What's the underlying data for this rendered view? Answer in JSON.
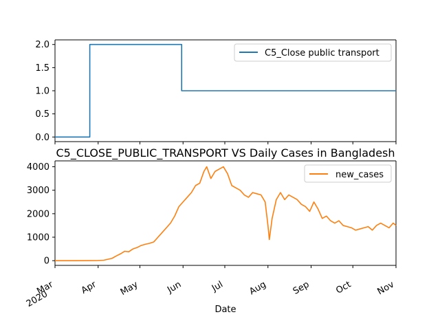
{
  "chart_data": [
    {
      "type": "line",
      "title": "",
      "xlabel": "",
      "ylabel": "",
      "xlim": [
        "2020-03-01",
        "2020-11-01"
      ],
      "ylim": [
        -0.1,
        2.1
      ],
      "yticks": [
        0.0,
        0.5,
        1.0,
        1.5,
        2.0
      ],
      "ytick_labels": [
        "0.0",
        "0.5",
        "1.0",
        "1.5",
        "2.0"
      ],
      "legend_position": "top-right",
      "grid": false,
      "series": [
        {
          "name": "C5_Close public transport",
          "color": "#1f77b4",
          "step": true,
          "points": [
            [
              "2020-03-01",
              0
            ],
            [
              "2020-03-26",
              0
            ],
            [
              "2020-03-26",
              2
            ],
            [
              "2020-05-31",
              2
            ],
            [
              "2020-05-31",
              1
            ],
            [
              "2020-11-01",
              1
            ]
          ]
        }
      ]
    },
    {
      "type": "line",
      "title": "C5_CLOSE_PUBLIC_TRANSPORT VS Daily Cases in Bangladesh",
      "xlabel": "Date",
      "ylabel": "",
      "xlim": [
        "2020-03-01",
        "2020-11-01"
      ],
      "ylim": [
        -200,
        4250
      ],
      "yticks": [
        0,
        1000,
        2000,
        3000,
        4000
      ],
      "ytick_labels": [
        "0",
        "1000",
        "2000",
        "3000",
        "4000"
      ],
      "xticks": [
        {
          "date": "2020-03-01",
          "label": "Mar",
          "sublabel": "2020"
        },
        {
          "date": "2020-04-01",
          "label": "Apr"
        },
        {
          "date": "2020-05-01",
          "label": "May"
        },
        {
          "date": "2020-06-01",
          "label": "Jun"
        },
        {
          "date": "2020-07-01",
          "label": "Jul"
        },
        {
          "date": "2020-08-01",
          "label": "Aug"
        },
        {
          "date": "2020-09-01",
          "label": "Sep"
        },
        {
          "date": "2020-10-01",
          "label": "Oct"
        },
        {
          "date": "2020-11-01",
          "label": "Nov"
        }
      ],
      "legend_position": "top-right",
      "grid": false,
      "series": [
        {
          "name": "new_cases",
          "color": "#ff7f0e",
          "points": [
            [
              "2020-03-01",
              0
            ],
            [
              "2020-03-15",
              0
            ],
            [
              "2020-03-31",
              5
            ],
            [
              "2020-04-05",
              20
            ],
            [
              "2020-04-08",
              60
            ],
            [
              "2020-04-11",
              100
            ],
            [
              "2020-04-14",
              200
            ],
            [
              "2020-04-17",
              290
            ],
            [
              "2020-04-20",
              400
            ],
            [
              "2020-04-23",
              380
            ],
            [
              "2020-04-26",
              500
            ],
            [
              "2020-04-29",
              560
            ],
            [
              "2020-05-02",
              650
            ],
            [
              "2020-05-05",
              700
            ],
            [
              "2020-05-08",
              740
            ],
            [
              "2020-05-11",
              800
            ],
            [
              "2020-05-14",
              1000
            ],
            [
              "2020-05-17",
              1200
            ],
            [
              "2020-05-20",
              1400
            ],
            [
              "2020-05-23",
              1600
            ],
            [
              "2020-05-26",
              1900
            ],
            [
              "2020-05-29",
              2300
            ],
            [
              "2020-06-01",
              2500
            ],
            [
              "2020-06-04",
              2700
            ],
            [
              "2020-06-07",
              2900
            ],
            [
              "2020-06-10",
              3200
            ],
            [
              "2020-06-13",
              3300
            ],
            [
              "2020-06-16",
              3800
            ],
            [
              "2020-06-18",
              4000
            ],
            [
              "2020-06-21",
              3500
            ],
            [
              "2020-06-24",
              3800
            ],
            [
              "2020-06-27",
              3900
            ],
            [
              "2020-06-30",
              4000
            ],
            [
              "2020-07-03",
              3700
            ],
            [
              "2020-07-06",
              3200
            ],
            [
              "2020-07-09",
              3100
            ],
            [
              "2020-07-12",
              3000
            ],
            [
              "2020-07-15",
              2800
            ],
            [
              "2020-07-18",
              2700
            ],
            [
              "2020-07-21",
              2900
            ],
            [
              "2020-07-24",
              2850
            ],
            [
              "2020-07-27",
              2800
            ],
            [
              "2020-07-30",
              2500
            ],
            [
              "2020-08-01",
              1500
            ],
            [
              "2020-08-02",
              900
            ],
            [
              "2020-08-04",
              1800
            ],
            [
              "2020-08-07",
              2600
            ],
            [
              "2020-08-10",
              2900
            ],
            [
              "2020-08-13",
              2600
            ],
            [
              "2020-08-16",
              2800
            ],
            [
              "2020-08-19",
              2700
            ],
            [
              "2020-08-22",
              2600
            ],
            [
              "2020-08-25",
              2400
            ],
            [
              "2020-08-28",
              2300
            ],
            [
              "2020-08-31",
              2100
            ],
            [
              "2020-09-03",
              2500
            ],
            [
              "2020-09-06",
              2200
            ],
            [
              "2020-09-09",
              1800
            ],
            [
              "2020-09-12",
              1900
            ],
            [
              "2020-09-15",
              1700
            ],
            [
              "2020-09-18",
              1600
            ],
            [
              "2020-09-21",
              1700
            ],
            [
              "2020-09-24",
              1500
            ],
            [
              "2020-09-27",
              1450
            ],
            [
              "2020-09-30",
              1400
            ],
            [
              "2020-10-03",
              1300
            ],
            [
              "2020-10-06",
              1350
            ],
            [
              "2020-10-09",
              1400
            ],
            [
              "2020-10-12",
              1450
            ],
            [
              "2020-10-15",
              1300
            ],
            [
              "2020-10-18",
              1500
            ],
            [
              "2020-10-21",
              1600
            ],
            [
              "2020-10-24",
              1500
            ],
            [
              "2020-10-27",
              1400
            ],
            [
              "2020-10-30",
              1600
            ],
            [
              "2020-11-01",
              1500
            ]
          ]
        }
      ]
    }
  ]
}
